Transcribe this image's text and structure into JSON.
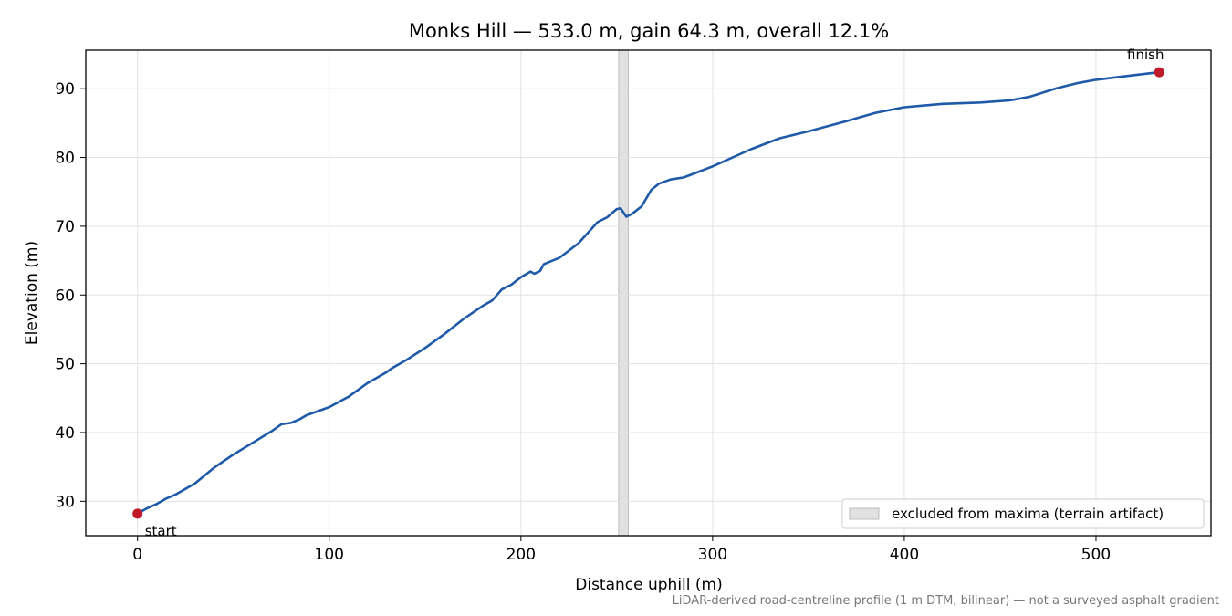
{
  "chart_data": {
    "type": "line",
    "title": "Monks Hill — 533.0 m, gain 64.3 m, overall 12.1%",
    "xlabel": "Distance uphill (m)",
    "ylabel": "Elevation (m)",
    "xlim": [
      -27,
      560
    ],
    "ylim": [
      25.0,
      95.6
    ],
    "xticks": [
      0,
      100,
      200,
      300,
      400,
      500
    ],
    "yticks": [
      30,
      40,
      50,
      60,
      70,
      80,
      90
    ],
    "grid": true,
    "legend_position": "lower-right",
    "colors": {
      "line": "#1f5aa8",
      "endpoint": "#c0192a",
      "band": "#d4d4d4"
    },
    "series": [
      {
        "x": [
          0,
          5,
          10,
          15,
          20,
          30,
          40,
          50,
          60,
          70,
          75,
          80,
          85,
          88,
          100,
          110,
          120,
          130,
          133,
          140,
          150,
          160,
          170,
          180,
          185,
          190,
          195,
          200,
          205,
          207,
          210,
          212,
          220,
          230,
          240,
          245,
          250,
          252,
          255,
          258,
          263,
          268,
          272,
          278,
          285,
          300,
          320,
          335,
          350,
          370,
          385,
          400,
          420,
          440,
          455,
          465,
          480,
          490,
          500,
          515,
          533
        ],
        "y": [
          28.2,
          29.0,
          29.6,
          30.4,
          31.0,
          32.6,
          34.9,
          36.8,
          38.5,
          40.2,
          41.2,
          41.4,
          42.0,
          42.5,
          43.7,
          45.2,
          47.2,
          48.8,
          49.4,
          50.5,
          52.3,
          54.3,
          56.5,
          58.4,
          59.2,
          60.8,
          61.5,
          62.6,
          63.4,
          63.1,
          63.5,
          64.5,
          65.4,
          67.5,
          70.6,
          71.3,
          72.5,
          72.6,
          71.4,
          71.8,
          72.9,
          75.3,
          76.2,
          76.8,
          77.1,
          78.7,
          81.2,
          82.8,
          83.8,
          85.3,
          86.5,
          87.3,
          87.8,
          88.0,
          88.3,
          88.8,
          90.1,
          90.8,
          91.3,
          91.8,
          92.4
        ]
      }
    ],
    "points": [
      {
        "label": "start",
        "x": 0,
        "y": 28.2
      },
      {
        "label": "finish",
        "x": 533,
        "y": 92.4
      }
    ],
    "excluded_band": {
      "x0": 251,
      "x1": 256,
      "label": "excluded from maxima (terrain artifact)"
    },
    "footnote": "LiDAR-derived road-centreline profile (1 m DTM, bilinear) — not a surveyed asphalt gradient"
  }
}
